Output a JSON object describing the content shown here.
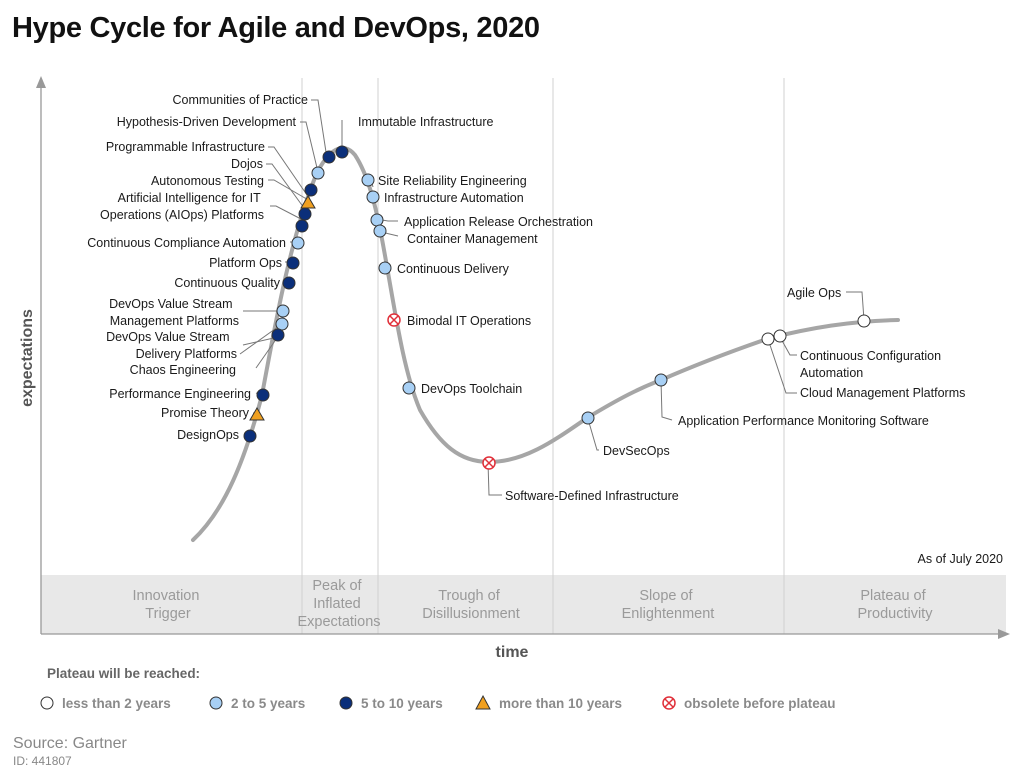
{
  "title": "Hype Cycle for Agile and DevOps, 2020",
  "axes": {
    "y": "expectations",
    "x": "time"
  },
  "as_of": "As of July 2020",
  "colors": {
    "lt2": "#ffffff",
    "2to5": "#a8d0f5",
    "5to10": "#0b2f7a",
    "gt10": "#f0a020",
    "obsolete": "#e0303a",
    "curve": "#a6a6a6",
    "phase_band": "#e8e8e8"
  },
  "phases": [
    {
      "lines": [
        "Innovation",
        "Trigger"
      ]
    },
    {
      "lines": [
        "Peak of",
        "Inflated",
        "Expectations"
      ]
    },
    {
      "lines": [
        "Trough of",
        "Disillusionment"
      ]
    },
    {
      "lines": [
        "Slope of",
        "Enlightenment"
      ]
    },
    {
      "lines": [
        "Plateau of",
        "Productivity"
      ]
    }
  ],
  "technologies": [
    {
      "label": "Communities of Practice",
      "category": "2to5"
    },
    {
      "label": "Hypothesis-Driven Development",
      "category": "5to10"
    },
    {
      "label": "Immutable Infrastructure",
      "category": "5to10"
    },
    {
      "label": "Programmable Infrastructure",
      "category": "5to10"
    },
    {
      "label": "Dojos",
      "category": "5to10"
    },
    {
      "label": "Autonomous Testing",
      "category": "5to10"
    },
    {
      "label": "Artificial Intelligence for IT",
      "label2": "Operations (AIOps) Platforms",
      "category": "gt10"
    },
    {
      "label": "Continuous Compliance Automation",
      "category": "2to5"
    },
    {
      "label": "Platform Ops",
      "category": "5to10"
    },
    {
      "label": "Continuous Quality",
      "category": "5to10"
    },
    {
      "label": "DevOps Value Stream",
      "label2": "Management Platforms",
      "category": "2to5"
    },
    {
      "label": "DevOps Value Stream",
      "label2": "Delivery Platforms",
      "category": "2to5"
    },
    {
      "label": "Chaos Engineering",
      "category": "5to10"
    },
    {
      "label": "Performance Engineering",
      "category": "5to10"
    },
    {
      "label": "Promise Theory",
      "category": "gt10"
    },
    {
      "label": "DesignOps",
      "category": "5to10"
    },
    {
      "label": "Site Reliability Engineering",
      "category": "2to5"
    },
    {
      "label": "Infrastructure Automation",
      "category": "2to5"
    },
    {
      "label": "Application Release Orchestration",
      "category": "2to5"
    },
    {
      "label": "Container Management",
      "category": "2to5"
    },
    {
      "label": "Continuous Delivery",
      "category": "2to5"
    },
    {
      "label": "Bimodal IT Operations",
      "category": "obsolete"
    },
    {
      "label": "DevOps Toolchain",
      "category": "2to5"
    },
    {
      "label": "Software-Defined Infrastructure",
      "category": "obsolete"
    },
    {
      "label": "DevSecOps",
      "category": "2to5"
    },
    {
      "label": "Application Performance Monitoring Software",
      "category": "2to5"
    },
    {
      "label": "Continuous Configuration",
      "label2": "Automation",
      "category": "lt2"
    },
    {
      "label": "Cloud Management Platforms",
      "category": "lt2"
    },
    {
      "label": "Agile Ops",
      "category": "lt2"
    }
  ],
  "legend": {
    "title": "Plateau will be reached:",
    "items": [
      {
        "key": "lt2",
        "label": "less than 2 years"
      },
      {
        "key": "2to5",
        "label": "2 to 5 years"
      },
      {
        "key": "5to10",
        "label": "5 to 10 years"
      },
      {
        "key": "gt10",
        "label": "more than 10 years"
      },
      {
        "key": "obsolete",
        "label": "obsolete before plateau"
      }
    ]
  },
  "source": "Source: Gartner",
  "id": "ID: 441807"
}
